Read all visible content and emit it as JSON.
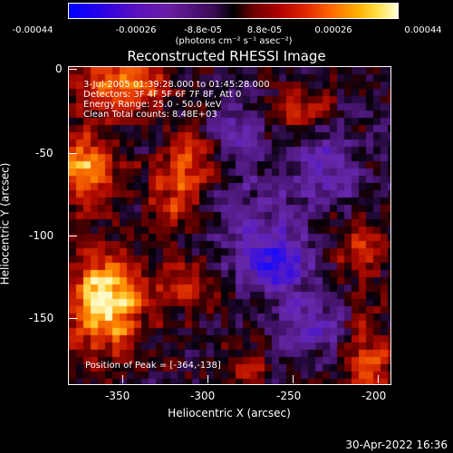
{
  "colorbar": {
    "ticks": [
      "-0.00044",
      "-0.00026",
      "-8.8e-05",
      "8.8e-05",
      "0.00026",
      "0.00044"
    ],
    "unit": "(photons cm⁻² s⁻¹ asec⁻²)"
  },
  "title": "Reconstructed RHESSI Image",
  "annotations": {
    "time": "3-Jul-2005 01:39:28.000 to 01:45:28.000",
    "detectors": "Detectors: 3F 4F 5F 6F 7F 8F, Att 0",
    "energy": "Energy Range: 25.0 - 50.0 keV",
    "clean": "Clean     Total counts: 8.48E+03",
    "peak": "Position of Peak = [-364,-138]"
  },
  "axes": {
    "x_label": "Heliocentric X (arcsec)",
    "y_label": "Heliocentric Y (arcsec)",
    "x_ticks": [
      "-350",
      "-300",
      "-250",
      "-200"
    ],
    "y_ticks": [
      "0",
      "-50",
      "-100",
      "-150"
    ]
  },
  "footer": "30-Apr-2022 16:36"
}
